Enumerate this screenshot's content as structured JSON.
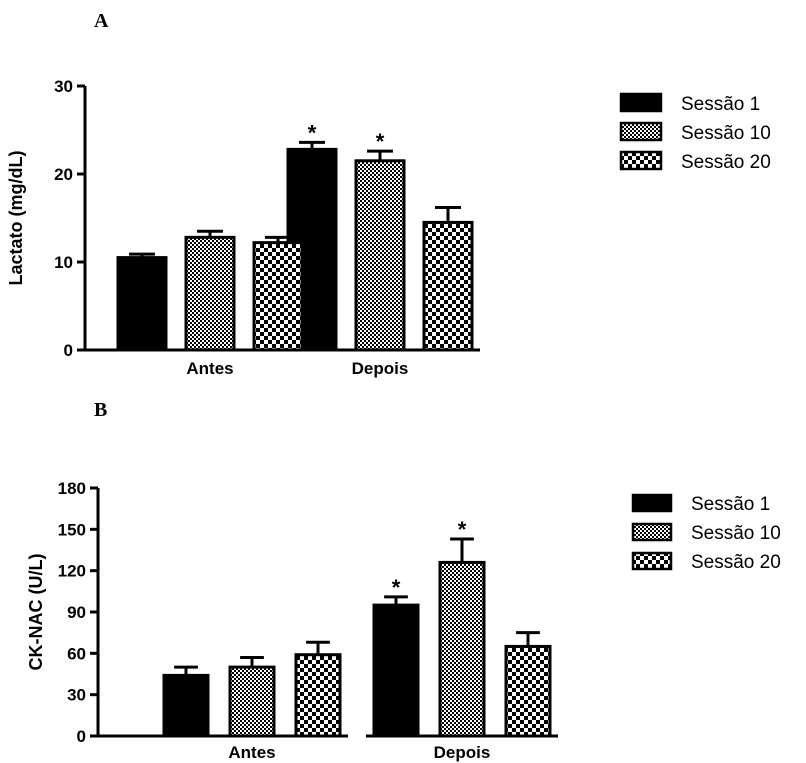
{
  "colors": {
    "sessao1_fill": "#000000",
    "sessao10_fill": "dense-checker",
    "sessao20_fill": "coarse-checker",
    "axis": "#000000"
  },
  "chart_data": [
    {
      "panel_label": "A",
      "type": "bar",
      "categories": [
        "Antes",
        "Depois"
      ],
      "ylabel": "Lactato (mg/dL)",
      "ylim": [
        0,
        30
      ],
      "yticks": [
        "0",
        "10",
        "20",
        "30"
      ],
      "legend_position": "right",
      "series": [
        {
          "name": "Sessão 1",
          "values": [
            10.5,
            22.8
          ],
          "errors": [
            0.4,
            0.8
          ],
          "significance": [
            "",
            "*"
          ]
        },
        {
          "name": "Sessão 10",
          "values": [
            12.8,
            21.5
          ],
          "errors": [
            0.7,
            1.1
          ],
          "significance": [
            "",
            "*"
          ]
        },
        {
          "name": "Sessão 20",
          "values": [
            12.2,
            14.5
          ],
          "errors": [
            0.6,
            1.7
          ],
          "significance": [
            "",
            ""
          ]
        }
      ]
    },
    {
      "panel_label": "B",
      "type": "bar",
      "categories": [
        "Antes",
        "Depois"
      ],
      "ylabel": "CK-NAC (U/L)",
      "ylim": [
        0,
        180
      ],
      "yticks": [
        "0",
        "30",
        "60",
        "90",
        "120",
        "150",
        "180"
      ],
      "legend_position": "right",
      "series": [
        {
          "name": "Sessão 1",
          "values": [
            44,
            95
          ],
          "errors": [
            6,
            6
          ],
          "significance": [
            "",
            "*"
          ]
        },
        {
          "name": "Sessão 10",
          "values": [
            50,
            126
          ],
          "errors": [
            7,
            17
          ],
          "significance": [
            "",
            "*"
          ]
        },
        {
          "name": "Sessão 20",
          "values": [
            59,
            65
          ],
          "errors": [
            9,
            10
          ],
          "significance": [
            "",
            ""
          ]
        }
      ]
    }
  ]
}
